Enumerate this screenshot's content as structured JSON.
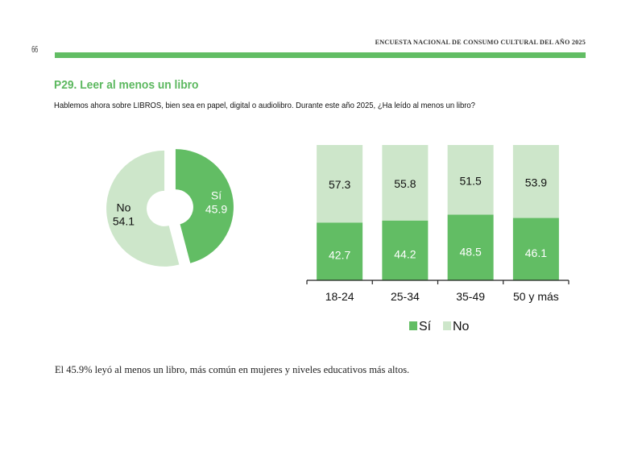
{
  "page": {
    "number": "66",
    "running_header": "ENCUESTA NACIONAL DE CONSUMO CULTURAL DEL AÑO 2025",
    "accent_color": "#62bd64"
  },
  "question": {
    "title": "P29. Leer al menos un libro",
    "text": "Hablemos ahora sobre LIBROS, bien sea en papel, digital o audiolibro.  Durante este año 2025, ¿Ha leído al menos un libro?"
  },
  "footer": {
    "text": "El 45.9% leyó al menos un libro, más común en mujeres y niveles educativos más altos."
  },
  "chart_data": [
    {
      "type": "pie",
      "variant": "donut",
      "title": "",
      "slices": [
        {
          "label": "Sí",
          "value": 45.9,
          "color": "#62bd64",
          "label_color": "#ffffff"
        },
        {
          "label": "No",
          "value": 54.1,
          "color": "#cde6ca",
          "label_color": "#111111"
        }
      ]
    },
    {
      "type": "bar",
      "stacked": true,
      "categories": [
        "18-24",
        "25-34",
        "35-49",
        "50 y más"
      ],
      "series": [
        {
          "name": "Sí",
          "values": [
            42.7,
            44.2,
            48.5,
            46.1
          ],
          "color": "#62bd64",
          "label_color": "#ffffff"
        },
        {
          "name": "No",
          "values": [
            57.3,
            55.8,
            51.5,
            53.9
          ],
          "color": "#cde6ca",
          "label_color": "#111111"
        }
      ],
      "title": "",
      "xlabel": "",
      "ylabel": "",
      "ylim": [
        0,
        100
      ],
      "grid": false,
      "legend": {
        "position": "bottom",
        "entries": [
          "Sí",
          "No"
        ]
      }
    }
  ]
}
